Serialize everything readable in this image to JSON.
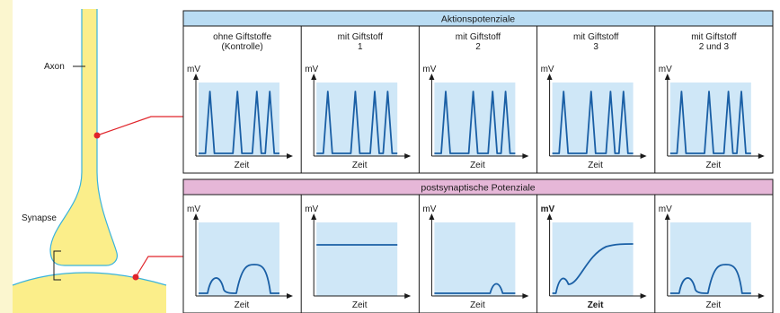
{
  "neuron": {
    "axon_label": "Axon",
    "synapse_label": "Synapse"
  },
  "action_potentials": {
    "header": "Aktionspotenziale",
    "panels": [
      {
        "title_line1": "ohne Giftstoffe",
        "title_line2": "(Kontrolle)",
        "spikes": [
          0.14,
          0.48,
          0.72,
          0.88
        ]
      },
      {
        "title_line1": "mit Giftstoff",
        "title_line2": "1",
        "spikes": [
          0.14,
          0.48,
          0.72,
          0.88
        ]
      },
      {
        "title_line1": "mit Giftstoff",
        "title_line2": "2",
        "spikes": [
          0.14,
          0.48,
          0.72,
          0.88
        ]
      },
      {
        "title_line1": "mit Giftstoff",
        "title_line2": "3",
        "spikes": [
          0.14,
          0.48,
          0.72,
          0.88
        ]
      },
      {
        "title_line1": "mit Giftstoff",
        "title_line2": "2 und 3",
        "spikes": [
          0.14,
          0.48,
          0.72,
          0.88
        ]
      }
    ]
  },
  "postsynaptic_potentials": {
    "header": "postsynaptische Potenziale",
    "panels": [
      {
        "curve": "double-bump"
      },
      {
        "curve": "flat-high"
      },
      {
        "curve": "flat-low-bump"
      },
      {
        "curve": "sigmoid-rise",
        "bold_labels": true
      },
      {
        "curve": "double-bump"
      }
    ]
  },
  "axes": {
    "y_label": "mV",
    "x_label": "Zeit"
  },
  "colors": {
    "neuron_fill": "#fbee8a",
    "neuron_outline": "#39b3dc",
    "top_header": "#b9dcf3",
    "bottom_header": "#e6b7d8",
    "plot_bg": "#cfe7f7",
    "curve": "#1a5fa5",
    "connector": "#e0242a",
    "left_panel_bg": "#fbf6cf"
  }
}
